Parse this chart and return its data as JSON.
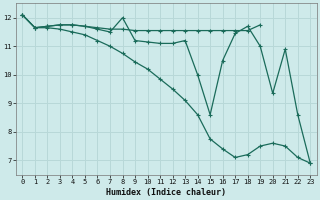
{
  "xlabel": "Humidex (Indice chaleur)",
  "bg_color": "#ceeaea",
  "grid_color": "#b8d8d8",
  "line_color": "#1a6b5a",
  "xlim": [
    -0.5,
    23.5
  ],
  "ylim": [
    6.5,
    12.5
  ],
  "xticks": [
    0,
    1,
    2,
    3,
    4,
    5,
    6,
    7,
    8,
    9,
    10,
    11,
    12,
    13,
    14,
    15,
    16,
    17,
    18,
    19,
    20,
    21,
    22,
    23
  ],
  "yticks": [
    7,
    8,
    9,
    10,
    11,
    12
  ],
  "series": [
    {
      "x": [
        0,
        1,
        2,
        3,
        4,
        5,
        6,
        7,
        8,
        9,
        10,
        11,
        12,
        13,
        14,
        15,
        16,
        17,
        18,
        19
      ],
      "y": [
        12.1,
        11.65,
        11.7,
        11.75,
        11.75,
        11.7,
        11.65,
        11.6,
        11.6,
        11.55,
        11.55,
        11.55,
        11.55,
        11.55,
        11.55,
        11.55,
        11.55,
        11.55,
        11.55,
        11.75
      ]
    },
    {
      "x": [
        0,
        1,
        2,
        3,
        4,
        5,
        6,
        7,
        8,
        9,
        10,
        11,
        12,
        13,
        14,
        15,
        16,
        17,
        18,
        19,
        20,
        21,
        22,
        23
      ],
      "y": [
        12.1,
        11.65,
        11.7,
        11.75,
        11.75,
        11.7,
        11.6,
        11.5,
        12.0,
        11.2,
        11.15,
        11.1,
        11.1,
        11.2,
        10.0,
        8.6,
        10.5,
        11.45,
        11.7,
        11.0,
        9.35,
        10.9,
        8.6,
        6.9
      ]
    },
    {
      "x": [
        0,
        1,
        2,
        3,
        4,
        5,
        6,
        7,
        8,
        9,
        10,
        11,
        12,
        13,
        14,
        15,
        16,
        17,
        18,
        19,
        20,
        21,
        22,
        23
      ],
      "y": [
        12.1,
        11.65,
        11.65,
        11.6,
        11.5,
        11.4,
        11.2,
        11.0,
        10.75,
        10.45,
        10.2,
        9.85,
        9.5,
        9.1,
        8.6,
        7.75,
        7.4,
        7.1,
        7.2,
        7.5,
        7.6,
        7.5,
        7.1,
        6.9
      ]
    }
  ]
}
